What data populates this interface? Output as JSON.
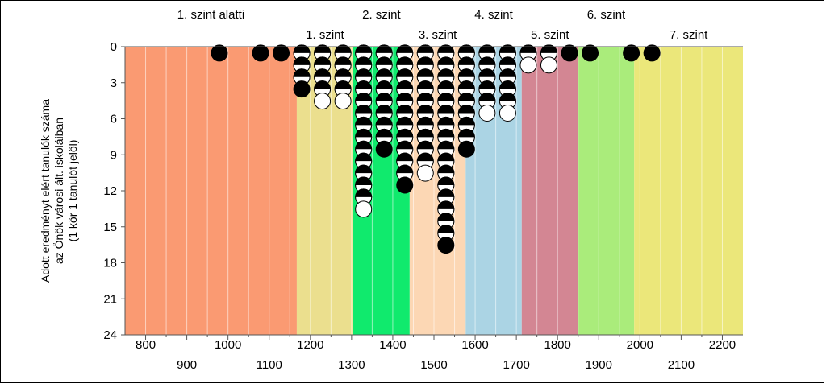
{
  "chart_data": {
    "type": "scatter",
    "ylabel_lines": [
      "Adott eredményt elért tanulók száma",
      "az Önök városi ált. iskoláiban",
      "(1 kör 1 tanulót jelöl)"
    ],
    "xlabel": "",
    "xlim": [
      750,
      2250
    ],
    "ylim": [
      0,
      24
    ],
    "y_reversed": true,
    "grid": true,
    "x_ticks_bottom_row1": [
      800,
      1000,
      1200,
      1400,
      1600,
      1800,
      2000,
      2200
    ],
    "x_ticks_bottom_row2": [
      900,
      1100,
      1300,
      1500,
      1700,
      1900,
      2100
    ],
    "y_ticks": [
      0,
      3,
      6,
      9,
      12,
      15,
      18,
      21,
      24
    ],
    "bands": [
      {
        "label": "1. szint alatti",
        "from": 750,
        "to": 1167,
        "color": "#fa9a72",
        "label_row": "top"
      },
      {
        "label": "1. szint",
        "from": 1167,
        "to": 1304,
        "color": "#ebdf8e",
        "label_row": "second"
      },
      {
        "label": "2. szint",
        "from": 1304,
        "to": 1441,
        "color": "#10ea6d",
        "label_row": "top"
      },
      {
        "label": "3. szint",
        "from": 1441,
        "to": 1577,
        "color": "#fcd7b4",
        "label_row": "second"
      },
      {
        "label": "4. szint",
        "from": 1577,
        "to": 1713,
        "color": "#abd4e4",
        "label_row": "top"
      },
      {
        "label": "5. szint",
        "from": 1713,
        "to": 1850,
        "color": "#d38693",
        "label_row": "second"
      },
      {
        "label": "6. szint",
        "from": 1850,
        "to": 1986,
        "color": "#aaec7b",
        "label_row": "top"
      },
      {
        "label": "7. szint",
        "from": 1986,
        "to": 2250,
        "color": "#ebe77a",
        "label_row": "second"
      }
    ],
    "columns": [
      {
        "x": 979,
        "fills": [
          "black"
        ]
      },
      {
        "x": 1079,
        "fills": [
          "black"
        ]
      },
      {
        "x": 1129,
        "fills": [
          "black"
        ]
      },
      {
        "x": 1179,
        "fills": [
          "half",
          "half",
          "half",
          "black"
        ]
      },
      {
        "x": 1229,
        "fills": [
          "half",
          "half",
          "half",
          "half",
          "white"
        ]
      },
      {
        "x": 1279,
        "fills": [
          "half",
          "half",
          "half",
          "half",
          "white"
        ]
      },
      {
        "x": 1329,
        "fills": [
          "half",
          "half",
          "half",
          "half",
          "half",
          "half",
          "half",
          "half",
          "half",
          "half",
          "half",
          "half",
          "half",
          "white"
        ]
      },
      {
        "x": 1379,
        "fills": [
          "half",
          "half",
          "half",
          "half",
          "half",
          "half",
          "half",
          "half",
          "black"
        ]
      },
      {
        "x": 1429,
        "fills": [
          "half",
          "half",
          "half",
          "half",
          "half",
          "half",
          "half",
          "half",
          "half",
          "half",
          "half",
          "black"
        ]
      },
      {
        "x": 1479,
        "fills": [
          "half",
          "half",
          "half",
          "half",
          "half",
          "half",
          "half",
          "half",
          "half",
          "half",
          "white"
        ]
      },
      {
        "x": 1529,
        "fills": [
          "half",
          "half",
          "half",
          "half",
          "half",
          "half",
          "half",
          "half",
          "half",
          "half",
          "half",
          "half",
          "half",
          "half",
          "half",
          "half",
          "black"
        ]
      },
      {
        "x": 1579,
        "fills": [
          "half",
          "half",
          "half",
          "half",
          "half",
          "half",
          "half",
          "half",
          "black"
        ]
      },
      {
        "x": 1629,
        "fills": [
          "half",
          "half",
          "half",
          "half",
          "half",
          "white"
        ]
      },
      {
        "x": 1679,
        "fills": [
          "half",
          "half",
          "half",
          "half",
          "half",
          "white"
        ]
      },
      {
        "x": 1729,
        "fills": [
          "half",
          "white"
        ]
      },
      {
        "x": 1779,
        "fills": [
          "half",
          "white"
        ]
      },
      {
        "x": 1829,
        "fills": [
          "black"
        ]
      },
      {
        "x": 1879,
        "fills": [
          "black"
        ]
      },
      {
        "x": 1979,
        "fills": [
          "black"
        ]
      },
      {
        "x": 2029,
        "fills": [
          "black"
        ]
      }
    ]
  }
}
